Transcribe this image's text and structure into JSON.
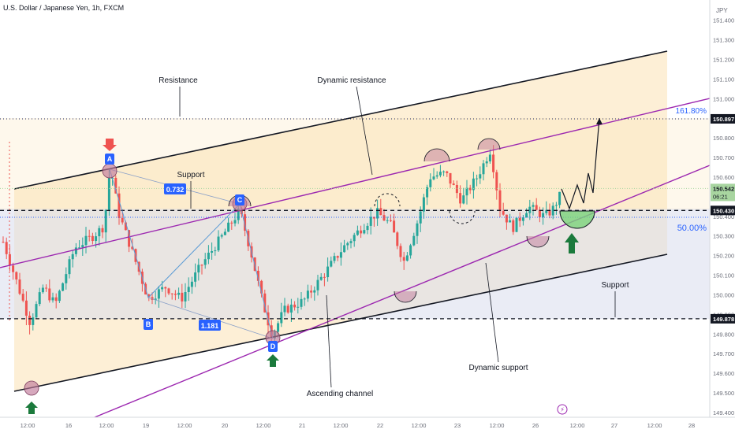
{
  "header": {
    "title": "U.S. Dollar / Japanese Yen, 1h, FXCM"
  },
  "chart_data": {
    "type": "candlestick",
    "symbol": "U.S. Dollar / Japanese Yen",
    "timeframe": "1h",
    "source": "FXCM",
    "currency": "JPY",
    "y_ticks": [
      "151.400",
      "151.300",
      "151.200",
      "151.100",
      "151.000",
      "150.900",
      "150.800",
      "150.700",
      "150.600",
      "150.500",
      "150.400",
      "150.300",
      "150.200",
      "150.100",
      "150.000",
      "149.900",
      "149.800",
      "149.700",
      "149.600",
      "149.500",
      "149.400"
    ],
    "y_tick_values": [
      151.4,
      151.3,
      151.2,
      151.1,
      151.0,
      150.9,
      150.8,
      150.7,
      150.6,
      150.5,
      150.4,
      150.3,
      150.2,
      150.1,
      150.0,
      149.9,
      149.8,
      149.7,
      149.6,
      149.5,
      149.4
    ],
    "x_ticks": [
      "12:00",
      "16",
      "12:00",
      "19",
      "12:00",
      "20",
      "12:00",
      "21",
      "12:00",
      "22",
      "12:00",
      "23",
      "12:00",
      "26",
      "12:00",
      "27",
      "12:00",
      "28"
    ],
    "price_tags": [
      {
        "label": "150.897",
        "value": 150.897,
        "color": "#131722"
      },
      {
        "label": "150.542",
        "sub": "06:21",
        "value": 150.542,
        "color": "#a8d5a0"
      },
      {
        "label": "150.430",
        "value": 150.43,
        "color": "#131722"
      },
      {
        "label": "149.878",
        "value": 149.878,
        "color": "#131722"
      }
    ],
    "levels": [
      {
        "name": "fib 161.80%",
        "value": 150.897,
        "style": "dotted"
      },
      {
        "name": "horizontal",
        "value": 150.43,
        "style": "dashed"
      },
      {
        "name": "horizontal",
        "value": 149.878,
        "style": "dashed"
      }
    ],
    "fib_labels": [
      "161.80%",
      "50.00%"
    ],
    "points": [
      {
        "label": "A",
        "value": 150.66
      },
      {
        "label": "B",
        "value": 149.99
      },
      {
        "label": "C",
        "value": 150.43
      },
      {
        "label": "D",
        "value": 149.79
      }
    ],
    "ratios": [
      "0.732",
      "1.181"
    ],
    "annotations": [
      "Resistance",
      "Dynamic resistance",
      "Support",
      "Support",
      "Ascending channel",
      "Dynamic support"
    ],
    "colors": {
      "up": "#26a69a",
      "down": "#ef5350",
      "channel": "#131722",
      "dynamic": "#9c27b0",
      "zone": "#fbe2b4",
      "accent": "#2962ff"
    }
  }
}
